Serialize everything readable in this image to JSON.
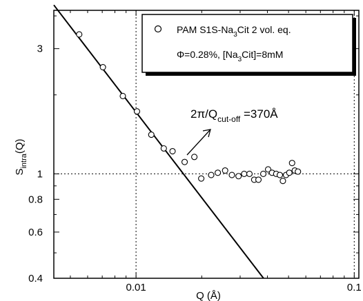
{
  "chart_data": {
    "type": "scatter",
    "xlabel": "Q (Å)",
    "ylabel": {
      "base": "S",
      "sub": "intra",
      "suffix": "(Q)"
    },
    "x_scale": "log",
    "y_scale": "log",
    "xlim": [
      0.0042,
      0.105
    ],
    "ylim": [
      0.4,
      4.2
    ],
    "x_ticks": [
      {
        "value": 0.01,
        "label": "0.01"
      },
      {
        "value": 0.1,
        "label": "0.1"
      }
    ],
    "y_ticks": [
      {
        "value": 0.4,
        "label": "0.4"
      },
      {
        "value": 0.6,
        "label": "0.6"
      },
      {
        "value": 0.8,
        "label": "0.8"
      },
      {
        "value": 1,
        "label": "1"
      },
      {
        "value": 3,
        "label": "3"
      }
    ],
    "reference_lines": {
      "x": [
        0.01,
        0.1
      ],
      "y": [
        1
      ]
    },
    "legend": {
      "position": "top-right",
      "series_label": {
        "a": "PAM S1S-Na",
        "sub": "3",
        "b": "Cit 2 vol. eq."
      },
      "condition_label": {
        "a": "Φ=0.28%, [Na",
        "sub": "3",
        "b": "Cit]=8mM"
      }
    },
    "annotation": {
      "main": "2π/Q",
      "sub": "cut-off",
      "value": " =370Å"
    },
    "fit_line": {
      "x1": 0.0042,
      "y1": 4.4,
      "x2": 0.0384,
      "y2": 0.4
    },
    "series": [
      {
        "marker": "open-circle",
        "points": [
          [
            0.00549,
            3.4
          ],
          [
            0.00705,
            2.55
          ],
          [
            0.0087,
            1.98
          ],
          [
            0.0101,
            1.73
          ],
          [
            0.01175,
            1.41
          ],
          [
            0.0134,
            1.25
          ],
          [
            0.0147,
            1.22
          ],
          [
            0.0167,
            1.11
          ],
          [
            0.0185,
            1.16
          ],
          [
            0.0199,
            0.96
          ],
          [
            0.0221,
            0.99
          ],
          [
            0.0237,
            1.01
          ],
          [
            0.0256,
            1.03
          ],
          [
            0.0275,
            0.99
          ],
          [
            0.0295,
            0.98
          ],
          [
            0.0313,
            1.0
          ],
          [
            0.0331,
            1.0
          ],
          [
            0.0348,
            0.95
          ],
          [
            0.0364,
            0.95
          ],
          [
            0.0383,
            1.0
          ],
          [
            0.0403,
            1.04
          ],
          [
            0.042,
            1.01
          ],
          [
            0.0439,
            1.0
          ],
          [
            0.0456,
            0.99
          ],
          [
            0.0471,
            0.94
          ],
          [
            0.0487,
            0.99
          ],
          [
            0.0504,
            1.01
          ],
          [
            0.0519,
            1.1
          ],
          [
            0.0534,
            1.03
          ],
          [
            0.0552,
            1.02
          ]
        ]
      }
    ]
  }
}
